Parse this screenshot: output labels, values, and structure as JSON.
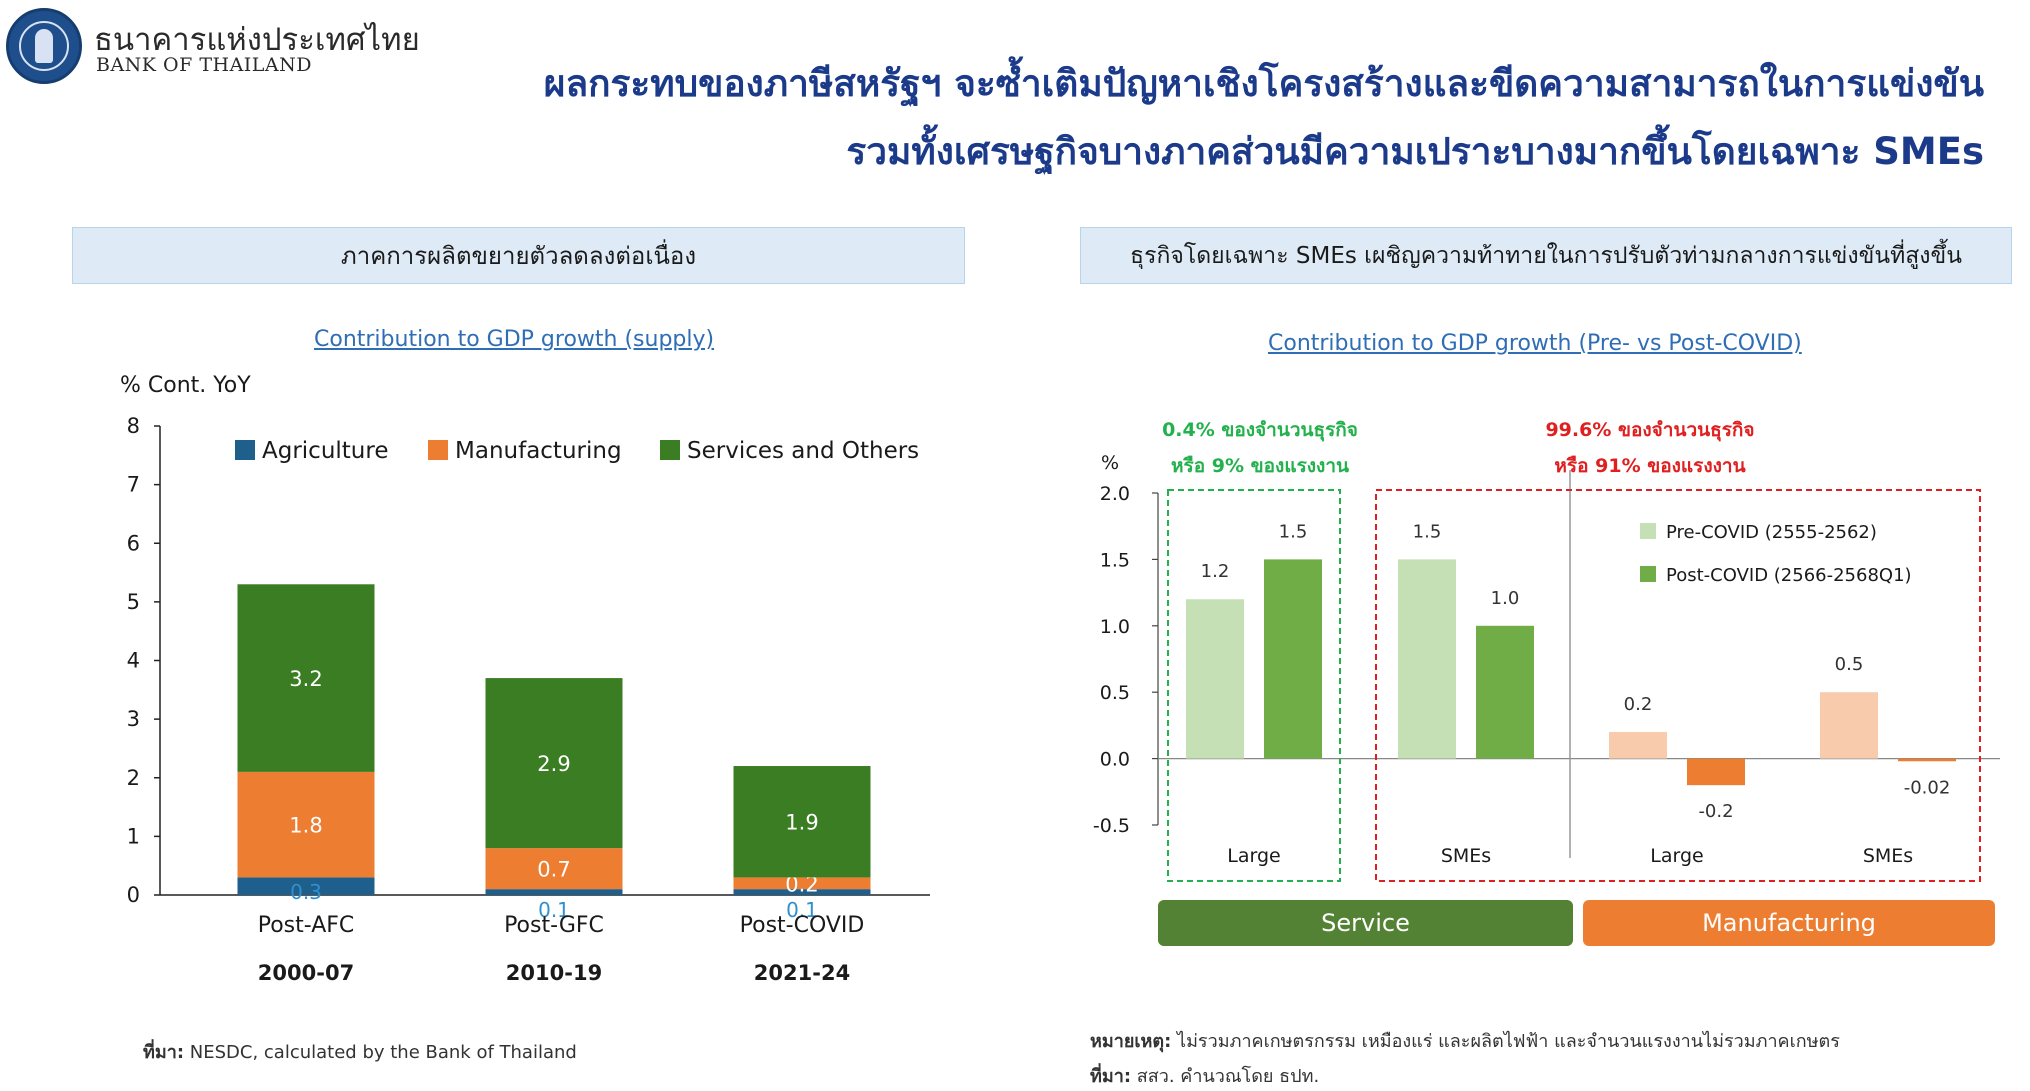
{
  "header": {
    "logo_th": "ธนาคารแห่งประเทศไทย",
    "logo_en": "BANK OF THAILAND",
    "title_line1": "ผลกระทบของภาษีสหรัฐฯ จะซ้ำเติมปัญหาเชิงโครงสร้างและขีดความสามารถในการแข่งขัน",
    "title_line2": "รวมทั้งเศรษฐกิจบางภาคส่วนมีความเปราะบางมากขึ้นโดยเฉพาะ SMEs"
  },
  "left_panel": {
    "header": "ภาคการผลิตขยายตัวลดลงต่อเนื่อง",
    "chart_title": "Contribution to GDP growth (supply)",
    "source_label": "ที่มา:",
    "source_text": " NESDC, calculated by the Bank of Thailand"
  },
  "right_panel": {
    "header": "ธุรกิจโดยเฉพาะ SMEs เผชิญความท้าทายในการปรับตัวท่ามกลางการแข่งขันที่สูงขึ้น",
    "chart_title": "Contribution to GDP growth (Pre- vs Post-COVID)",
    "annotation_large_1": "0.4% ของจำนวนธุรกิจ",
    "annotation_large_2": "หรือ 9% ของแรงงาน",
    "annotation_sme_1": "99.6% ของจำนวนธุรกิจ",
    "annotation_sme_2": "หรือ 91% ของแรงงาน",
    "segment_service": "Service",
    "segment_manufacturing": "Manufacturing",
    "note_label": "หมายเหตุ:",
    "note_text": " ไม่รวมภาคเกษตรกรรม เหมืองแร่ และผลิตไฟฟ้า และจำนวนแรงงานไม่รวมภาคเกษตร",
    "source_label": "ที่มา:",
    "source_text": " สสว. คำนวณโดย ธปท."
  },
  "colors": {
    "agriculture": "#1f5f8b",
    "manufacturing": "#ed7d31",
    "services": "#3a7d22",
    "pre_service": "#c5e0b4",
    "post_service": "#70ad47",
    "pre_manufacturing": "#f8cbad",
    "post_manufacturing": "#ed7d31",
    "service_bar": "#548235",
    "manufacturing_bar": "#ed7d31",
    "large_box": "#22b14c",
    "sme_box": "#e02020",
    "title_blue": "#1b3a8a",
    "header_bg": "#deebf7"
  },
  "chart_data": [
    {
      "type": "bar",
      "stacked": true,
      "ylabel": "% Cont. YoY",
      "ylim": [
        0,
        8
      ],
      "yticks": [
        "0",
        "1",
        "2",
        "3",
        "4",
        "5",
        "6",
        "7",
        "8"
      ],
      "categories": [
        "Post-AFC",
        "Post-GFC",
        "Post-COVID"
      ],
      "category_periods": [
        "2000-07",
        "2010-19",
        "2021-24"
      ],
      "legend_position": "top",
      "series": [
        {
          "name": "Agriculture",
          "values": [
            0.3,
            0.1,
            0.1
          ],
          "labels": [
            "0.3",
            "0.1",
            "0.1"
          ]
        },
        {
          "name": "Manufacturing",
          "values": [
            1.8,
            0.7,
            0.2
          ],
          "labels": [
            "1.8",
            "0.7",
            "0.2"
          ]
        },
        {
          "name": "Services and Others",
          "values": [
            3.2,
            2.9,
            1.9
          ],
          "labels": [
            "3.2",
            "2.9",
            "1.9"
          ]
        }
      ]
    },
    {
      "type": "bar",
      "ylabel": "%",
      "ylim": [
        -0.5,
        2.0
      ],
      "yticks": [
        "-0.5",
        "0.0",
        "0.5",
        "1.0",
        "1.5",
        "2.0"
      ],
      "categories": [
        "Large",
        "SMEs",
        "Large",
        "SMEs"
      ],
      "groups": [
        "Service",
        "Service",
        "Manufacturing",
        "Manufacturing"
      ],
      "legend_position": "top-right",
      "series": [
        {
          "name": "Pre-COVID (2555-2562)",
          "values": [
            1.2,
            1.5,
            0.2,
            0.5
          ],
          "labels": [
            "1.2",
            "1.5",
            "0.2",
            "0.5"
          ]
        },
        {
          "name": "Post-COVID (2566-2568Q1)",
          "values": [
            1.5,
            1.0,
            -0.2,
            -0.02
          ],
          "labels": [
            "1.5",
            "1.0",
            "-0.2",
            "-0.02"
          ]
        }
      ]
    }
  ]
}
